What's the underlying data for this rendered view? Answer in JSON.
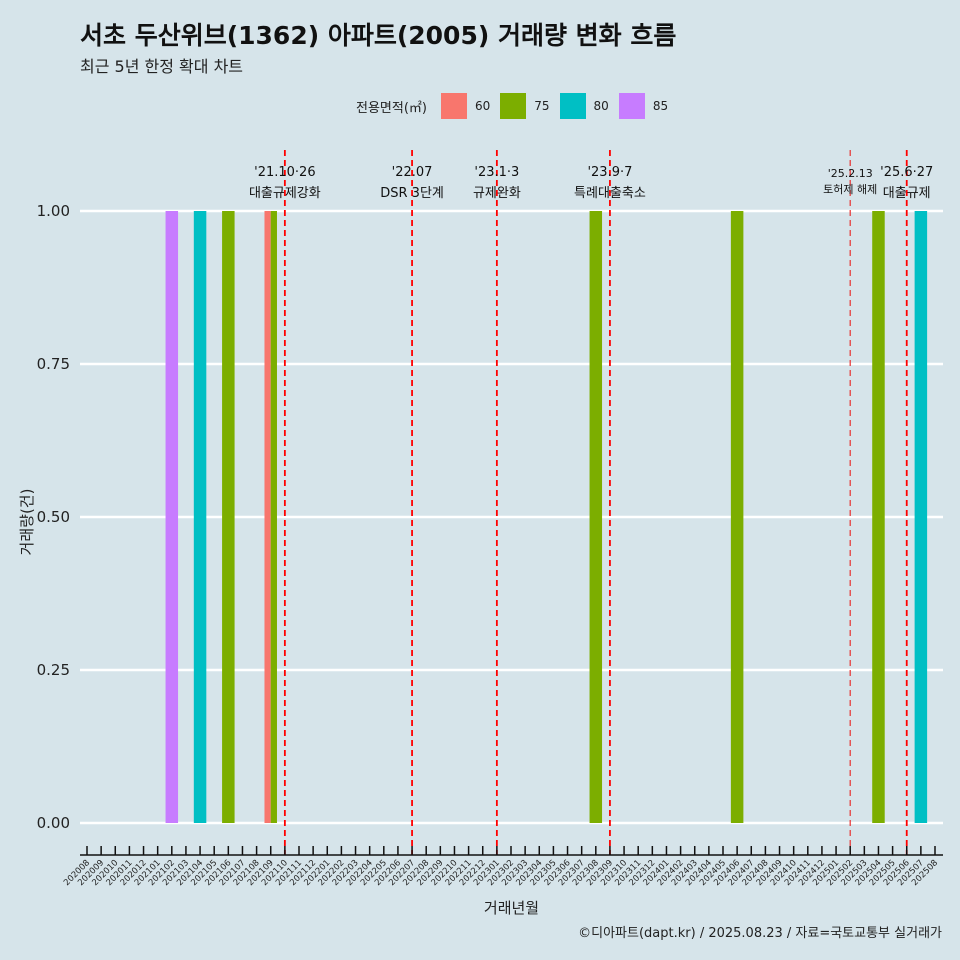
{
  "chart_data": {
    "type": "bar",
    "title": "서초 두산위브(1362) 아파트(2005) 거래량 변화 흐름",
    "subtitle": "최근 5년 한정 확대 차트",
    "xlabel": "거래년월",
    "ylabel": "거래량(건)",
    "ylim": [
      0,
      1
    ],
    "yticks": [
      "0.00",
      "0.25",
      "0.50",
      "0.75",
      "1.00"
    ],
    "legend_title": "전용면적(㎡)",
    "legend_position": "top",
    "categories": [
      "202008",
      "202009",
      "202010",
      "202011",
      "202012",
      "202101",
      "202102",
      "202103",
      "202104",
      "202105",
      "202106",
      "202107",
      "202108",
      "202109",
      "202110",
      "202111",
      "202112",
      "202201",
      "202202",
      "202203",
      "202204",
      "202205",
      "202206",
      "202207",
      "202208",
      "202209",
      "202210",
      "202211",
      "202212",
      "202301",
      "202302",
      "202303",
      "202304",
      "202305",
      "202306",
      "202307",
      "202308",
      "202309",
      "202310",
      "202311",
      "202312",
      "202401",
      "202402",
      "202403",
      "202404",
      "202405",
      "202406",
      "202407",
      "202408",
      "202409",
      "202410",
      "202411",
      "202412",
      "202501",
      "202502",
      "202503",
      "202504",
      "202505",
      "202506",
      "202507",
      "202508"
    ],
    "series": [
      {
        "name": "60",
        "color": "#F8766D",
        "points": [
          {
            "x": "202109",
            "y": 1
          }
        ]
      },
      {
        "name": "75",
        "color": "#7CAE00",
        "points": [
          {
            "x": "202106",
            "y": 1
          },
          {
            "x": "202109",
            "y": 1
          },
          {
            "x": "202308",
            "y": 1
          },
          {
            "x": "202406",
            "y": 1
          },
          {
            "x": "202504",
            "y": 1
          }
        ]
      },
      {
        "name": "80",
        "color": "#00BFC4",
        "points": [
          {
            "x": "202104",
            "y": 1
          },
          {
            "x": "202507",
            "y": 1
          }
        ]
      },
      {
        "name": "85",
        "color": "#C77CFF",
        "points": [
          {
            "x": "202102",
            "y": 1
          }
        ]
      }
    ],
    "annotations": [
      {
        "x": "202110",
        "date": "'21.10·26",
        "label": "대출규제강화"
      },
      {
        "x": "202207",
        "date": "'22.07",
        "label": "DSR 3단계"
      },
      {
        "x": "202301",
        "date": "'23.1·3",
        "label": "규제완화"
      },
      {
        "x": "202309",
        "date": "'23.9·7",
        "label": "특례대출축소"
      },
      {
        "x": "202502",
        "date": "'25.2.13",
        "label": "토허제 해제",
        "small": true
      },
      {
        "x": "202506",
        "date": "'25.6·27",
        "label": "대출규제"
      }
    ],
    "caption": "©디아파트(dapt.kr) / 2025.08.23 / 자료=국토교통부 실거래가"
  }
}
